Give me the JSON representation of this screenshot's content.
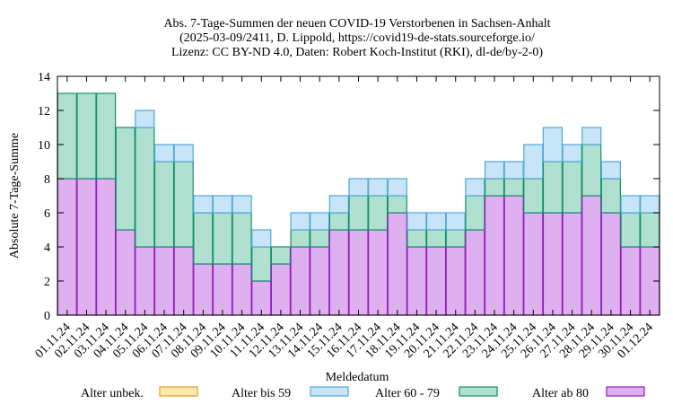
{
  "chart_data": {
    "type": "bar",
    "stacked": true,
    "title_lines": [
      "Abs. 7-Tage-Summen der neuen COVID-19 Verstorbenen in Sachsen-Anhalt",
      "(2025-03-09/2411, D. Lippold, https://covid19-de-stats.sourceforge.io/",
      "Lizenz: CC BY-ND 4.0, Daten: Robert Koch-Institut (RKI), dl-de/by-2-0)"
    ],
    "xlabel": "Meldedatum",
    "ylabel": "Absolute 7-Tage-Summe",
    "ylim": [
      0,
      14
    ],
    "yticks": [
      0,
      2,
      4,
      6,
      8,
      10,
      12,
      14
    ],
    "grid": false,
    "legend_position": "bottom",
    "categories": [
      "01.11.24",
      "02.11.24",
      "03.11.24",
      "04.11.24",
      "05.11.24",
      "06.11.24",
      "07.11.24",
      "08.11.24",
      "09.11.24",
      "10.11.24",
      "11.11.24",
      "12.11.24",
      "13.11.24",
      "14.11.24",
      "15.11.24",
      "16.11.24",
      "17.11.24",
      "18.11.24",
      "19.11.24",
      "20.11.24",
      "21.11.24",
      "22.11.24",
      "23.11.24",
      "24.11.24",
      "25.11.24",
      "26.11.24",
      "27.11.24",
      "28.11.24",
      "29.11.24",
      "30.11.24",
      "01.12.24"
    ],
    "series": [
      {
        "name": "Alter unbek.",
        "fill": "#fde8b0",
        "stroke": "#e0a020",
        "values": [
          0,
          0,
          0,
          0,
          0,
          0,
          0,
          0,
          0,
          0,
          0,
          0,
          0,
          0,
          0,
          0,
          0,
          0,
          0,
          0,
          0,
          0,
          0,
          0,
          0,
          0,
          0,
          0,
          0,
          0,
          0
        ]
      },
      {
        "name": "Alter ab 80",
        "fill": "#dfb0f0",
        "stroke": "#9020b8",
        "values": [
          8,
          8,
          8,
          5,
          4,
          4,
          4,
          3,
          3,
          3,
          2,
          3,
          4,
          4,
          5,
          5,
          5,
          6,
          4,
          4,
          4,
          5,
          7,
          7,
          6,
          6,
          6,
          7,
          6,
          4,
          4
        ]
      },
      {
        "name": "Alter 60 - 79",
        "fill": "#b0e0d0",
        "stroke": "#109070",
        "values": [
          5,
          5,
          5,
          6,
          7,
          5,
          5,
          3,
          3,
          3,
          2,
          1,
          1,
          1,
          1,
          2,
          2,
          1,
          1,
          1,
          1,
          2,
          1,
          1,
          2,
          3,
          3,
          3,
          2,
          2,
          2
        ]
      },
      {
        "name": "Alter bis 59",
        "fill": "#c8e4f8",
        "stroke": "#50a8d8",
        "values": [
          0,
          0,
          0,
          0,
          1,
          1,
          1,
          1,
          1,
          1,
          1,
          0,
          1,
          1,
          1,
          1,
          1,
          1,
          1,
          1,
          1,
          1,
          1,
          1,
          2,
          2,
          1,
          1,
          1,
          1,
          1
        ]
      }
    ],
    "legend_order": [
      "Alter unbek.",
      "Alter bis 59",
      "Alter 60 - 79",
      "Alter ab 80"
    ]
  }
}
